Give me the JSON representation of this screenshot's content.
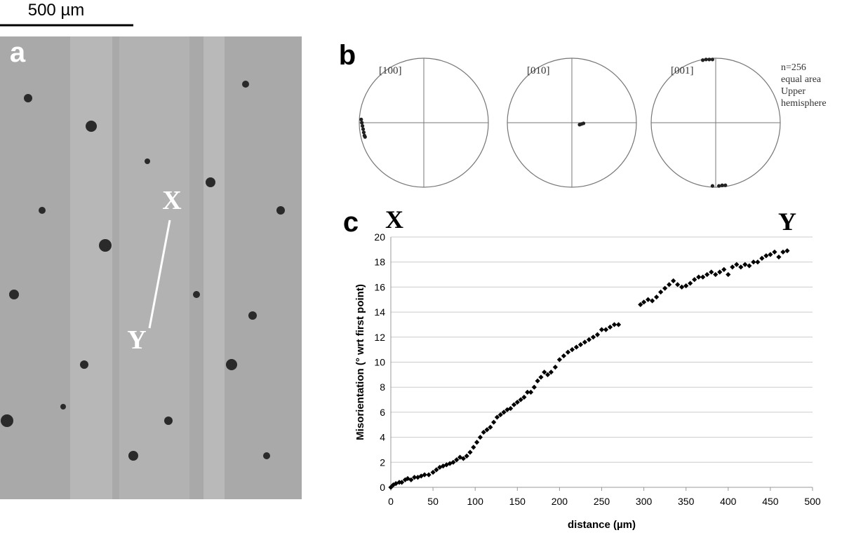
{
  "micrograph": {
    "label": "a",
    "scale_bar": "500 µm",
    "markers": [
      "X",
      "Y"
    ]
  },
  "pole_figures": {
    "label": "b",
    "notes": [
      "n=256",
      "equal area",
      "Upper",
      "hemisphere"
    ],
    "figures": [
      {
        "title": "[100]",
        "points_x": [
          -0.97,
          -0.96,
          -0.95,
          -0.94,
          -0.93,
          -0.92,
          -0.91
        ],
        "points_y": [
          0.05,
          0,
          -0.05,
          -0.1,
          -0.15,
          -0.2,
          -0.22
        ]
      },
      {
        "title": "[010]",
        "points_x": [
          0.12,
          0.15,
          0.18
        ],
        "points_y": [
          -0.03,
          -0.02,
          -0.01
        ]
      },
      {
        "title": "[001]",
        "points_x": [
          -0.2,
          -0.15,
          -0.1,
          -0.05,
          -0.05,
          0.05,
          0.1,
          0.15
        ],
        "points_y": [
          0.97,
          0.98,
          0.98,
          0.98,
          -0.98,
          -0.98,
          -0.97,
          -0.97
        ]
      }
    ]
  },
  "chart_data": {
    "type": "scatter",
    "label": "c",
    "start_label": "X",
    "end_label": "Y",
    "x_label": "distance (µm)",
    "y_label": "Misorientation (° wrt first point)",
    "color": "#000000",
    "grid": true,
    "xlim": [
      0,
      500
    ],
    "xticks": [
      0,
      50,
      100,
      150,
      200,
      250,
      300,
      350,
      400,
      450,
      500
    ],
    "ylim": [
      0,
      20
    ],
    "yticks": [
      0,
      2,
      4,
      6,
      8,
      10,
      12,
      14,
      16,
      18,
      20
    ],
    "x": [
      0,
      3,
      6,
      10,
      13,
      17,
      20,
      24,
      28,
      32,
      36,
      40,
      45,
      50,
      54,
      58,
      62,
      66,
      70,
      74,
      78,
      82,
      86,
      90,
      94,
      98,
      102,
      106,
      110,
      114,
      118,
      122,
      126,
      130,
      134,
      138,
      142,
      146,
      150,
      154,
      158,
      162,
      166,
      170,
      174,
      178,
      182,
      186,
      190,
      195,
      200,
      205,
      210,
      215,
      220,
      225,
      230,
      235,
      240,
      245,
      250,
      255,
      260,
      265,
      270,
      296,
      300,
      305,
      310,
      315,
      320,
      325,
      330,
      335,
      340,
      345,
      350,
      355,
      360,
      365,
      370,
      375,
      380,
      385,
      390,
      395,
      400,
      405,
      410,
      415,
      420,
      425,
      430,
      435,
      440,
      445,
      450,
      455,
      460,
      465,
      470
    ],
    "values": [
      0,
      0.2,
      0.3,
      0.4,
      0.4,
      0.6,
      0.7,
      0.6,
      0.8,
      0.8,
      0.9,
      1.0,
      1.0,
      1.2,
      1.4,
      1.6,
      1.7,
      1.8,
      1.9,
      2.0,
      2.2,
      2.4,
      2.3,
      2.5,
      2.8,
      3.2,
      3.6,
      4.0,
      4.4,
      4.6,
      4.8,
      5.2,
      5.6,
      5.8,
      6.0,
      6.2,
      6.3,
      6.6,
      6.8,
      7.0,
      7.2,
      7.6,
      7.6,
      8.0,
      8.5,
      8.8,
      9.2,
      9.0,
      9.2,
      9.6,
      10.2,
      10.5,
      10.8,
      11.0,
      11.2,
      11.4,
      11.6,
      11.8,
      12.0,
      12.2,
      12.6,
      12.6,
      12.8,
      13.0,
      13.0,
      14.6,
      14.8,
      15.0,
      14.9,
      15.2,
      15.6,
      15.9,
      16.2,
      16.5,
      16.2,
      16.0,
      16.1,
      16.3,
      16.6,
      16.8,
      16.8,
      17.0,
      17.2,
      17.0,
      17.2,
      17.4,
      17.0,
      17.6,
      17.8,
      17.6,
      17.8,
      17.7,
      18.0,
      18.0,
      18.3,
      18.5,
      18.6,
      18.8,
      18.4,
      18.8,
      18.9
    ]
  }
}
